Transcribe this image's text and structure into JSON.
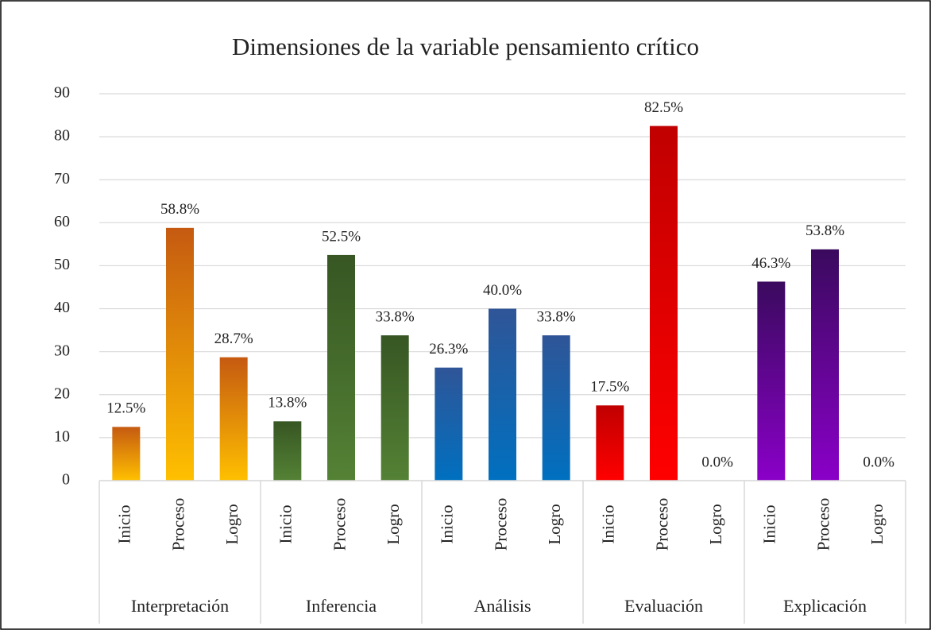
{
  "chart_data": {
    "type": "bar",
    "title": "Dimensiones de la variable pensamiento crítico",
    "groups": [
      {
        "name": "Interpretación",
        "categories": [
          "Inicio",
          "Proceso",
          "Logro"
        ],
        "values": [
          12.5,
          58.8,
          28.7
        ],
        "value_labels": [
          "12.5%",
          "58.8%",
          "28.7%"
        ],
        "colors": [
          "#c55a11",
          "#ffc000"
        ]
      },
      {
        "name": "Inferencia",
        "categories": [
          "Inicio",
          "Proceso",
          "Logro"
        ],
        "values": [
          13.8,
          52.5,
          33.8
        ],
        "value_labels": [
          "13.8%",
          "52.5%",
          "33.8%"
        ],
        "colors": [
          "#375623",
          "#548235"
        ]
      },
      {
        "name": "Análisis",
        "categories": [
          "Inicio",
          "Proceso",
          "Logro"
        ],
        "values": [
          26.3,
          40.0,
          33.8
        ],
        "value_labels": [
          "26.3%",
          "40.0%",
          "33.8%"
        ],
        "colors": [
          "#2f5597",
          "#0070c0"
        ]
      },
      {
        "name": "Evaluación",
        "categories": [
          "Inicio",
          "Proceso",
          "Logro"
        ],
        "values": [
          17.5,
          82.5,
          0.0
        ],
        "value_labels": [
          "17.5%",
          "82.5%",
          "0.0%"
        ],
        "colors": [
          "#c00000",
          "#ff0000"
        ]
      },
      {
        "name": "Explicación",
        "categories": [
          "Inicio",
          "Proceso",
          "Logro"
        ],
        "values": [
          46.3,
          53.8,
          0.0
        ],
        "value_labels": [
          "46.3%",
          "53.8%",
          "0.0%"
        ],
        "colors": [
          "#3a0a5e",
          "#8a00c8"
        ]
      }
    ],
    "ylim": [
      0,
      90
    ],
    "yticks": [
      0,
      10,
      20,
      30,
      40,
      50,
      60,
      70,
      80,
      90
    ],
    "grid": true
  }
}
